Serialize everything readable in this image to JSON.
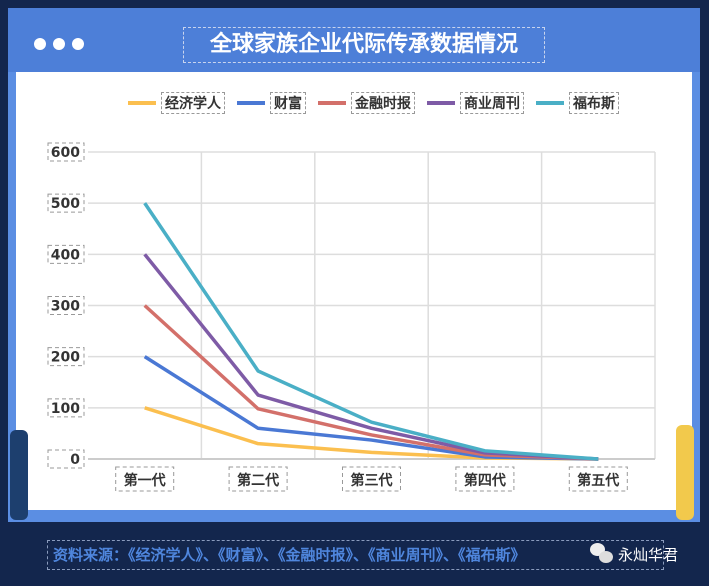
{
  "header": {
    "title": "全球家族企业代际传承数据情况"
  },
  "footer": {
    "source": "资料来源：《经济学人》、《财富》、《金融时报》、《商业周刊》、《福布斯》",
    "watermark": "永灿华君"
  },
  "chart_data": {
    "type": "line",
    "title": "全球家族企业代际传承数据情况",
    "categories": [
      "第一代",
      "第二代",
      "第三代",
      "第四代",
      "第五代"
    ],
    "ylim": [
      0,
      600
    ],
    "yticks": [
      "0",
      "100",
      "200",
      "300",
      "400",
      "500",
      "600"
    ],
    "grid": true,
    "legend_position": "top",
    "series": [
      {
        "name": "经济学人",
        "color": "#fbbf4f",
        "values": [
          100,
          30,
          13,
          2,
          0
        ]
      },
      {
        "name": "财富",
        "color": "#4a78d4",
        "values": [
          200,
          60,
          37,
          4,
          0
        ]
      },
      {
        "name": "金融时报",
        "color": "#d3706a",
        "values": [
          300,
          98,
          47,
          8,
          0
        ]
      },
      {
        "name": "商业周刊",
        "color": "#7e5ba6",
        "values": [
          400,
          125,
          60,
          12,
          0
        ]
      },
      {
        "name": "福布斯",
        "color": "#4aafc6",
        "values": [
          500,
          172,
          72,
          16,
          0
        ]
      }
    ]
  }
}
